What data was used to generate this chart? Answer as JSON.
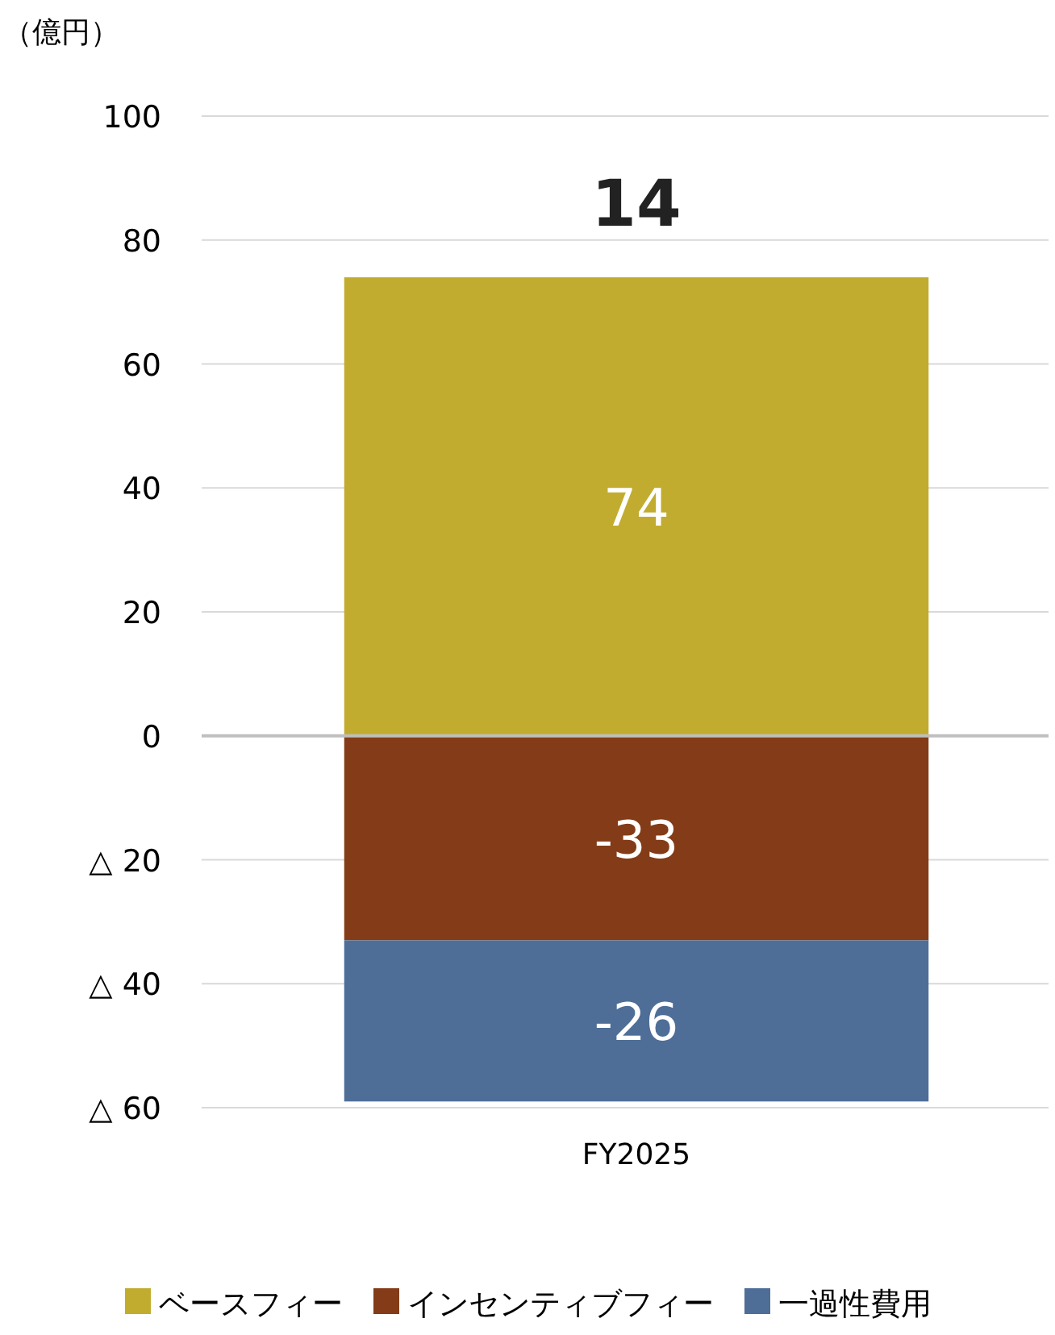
{
  "chart_data": {
    "type": "bar",
    "stacked": true,
    "ylabel": "（億円）",
    "categories": [
      "FY2025"
    ],
    "series": [
      {
        "name": "ベースフィー",
        "color": "#c2ac2f",
        "values": [
          74
        ]
      },
      {
        "name": "インセンティブフィー",
        "color": "#833c17",
        "values": [
          -33
        ]
      },
      {
        "name": "一過性費用",
        "color": "#4e6e98",
        "values": [
          -26
        ]
      }
    ],
    "ylim": [
      -60,
      100
    ],
    "yticks": [
      {
        "value": -60,
        "label": "△ 60"
      },
      {
        "value": -40,
        "label": "△ 40"
      },
      {
        "value": -20,
        "label": "△ 20"
      },
      0,
      20,
      40,
      60,
      80,
      100
    ],
    "grid": "y",
    "legend": "bottom",
    "data_labels": true,
    "totals": [
      "14"
    ]
  }
}
